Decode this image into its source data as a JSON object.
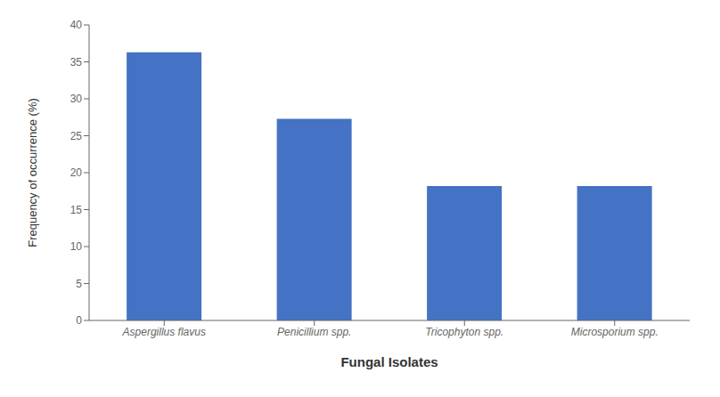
{
  "chart_data": {
    "type": "bar",
    "xlabel": "Fungal Isolates",
    "ylabel": "Frequency of occurrence (%)",
    "categories": [
      "Aspergillus flavus",
      "Penicillium spp.",
      "Tricophyton spp.",
      "Microsporium spp."
    ],
    "values": [
      36.3,
      27.3,
      18.2,
      18.2
    ],
    "color": "#4472C4",
    "ylim": [
      0,
      40
    ],
    "yticks": [
      0,
      5,
      10,
      15,
      20,
      25,
      30,
      35,
      40
    ],
    "grid": false
  }
}
